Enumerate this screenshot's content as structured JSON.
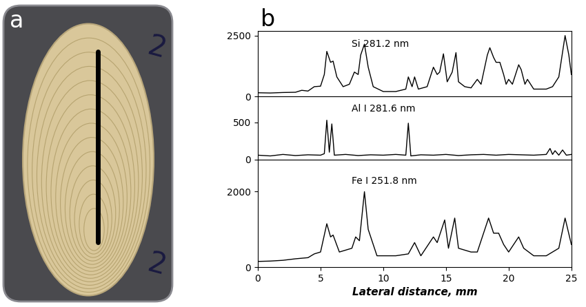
{
  "panels": [
    {
      "label": "a",
      "marks": [
        "2",
        "2"
      ]
    },
    {
      "label": "b"
    }
  ],
  "chart_data": [
    {
      "type": "line",
      "x": [
        0,
        1,
        2,
        3,
        3.5,
        4,
        4.5,
        5,
        5.3,
        5.5,
        5.8,
        6,
        6.3,
        6.8,
        7.3,
        7.7,
        8,
        8.2,
        8.5,
        8.8,
        9.2,
        10,
        11,
        11.8,
        12,
        12.3,
        12.5,
        12.8,
        13.5,
        14,
        14.3,
        14.5,
        14.8,
        15.1,
        15.5,
        15.8,
        16,
        16.5,
        17,
        17.5,
        17.8,
        18.3,
        18.5,
        18.8,
        19,
        19.3,
        19.6,
        19.8,
        20,
        20.3,
        20.8,
        21,
        21.3,
        21.5,
        22,
        22.5,
        23,
        23.5,
        24,
        24.5,
        24.8,
        25
      ],
      "series": [
        {
          "name": "Si 281.2 nm",
          "color": "#000000",
          "values": [
            150,
            140,
            160,
            170,
            250,
            220,
            400,
            420,
            900,
            1850,
            1400,
            1450,
            800,
            400,
            500,
            1000,
            900,
            1700,
            2150,
            1200,
            400,
            200,
            200,
            300,
            800,
            400,
            800,
            300,
            400,
            1200,
            900,
            1000,
            1750,
            600,
            1000,
            1800,
            600,
            400,
            350,
            700,
            500,
            1700,
            2000,
            1600,
            1400,
            1400,
            900,
            500,
            700,
            500,
            1300,
            1100,
            500,
            700,
            300,
            300,
            300,
            400,
            800,
            2500,
            1700,
            900
          ]
        }
      ],
      "xlim": [
        0,
        25
      ],
      "ylim": [
        0,
        2700
      ],
      "yticks": [
        0,
        2500
      ],
      "tick_labels": "y"
    },
    {
      "type": "line",
      "x": [
        0,
        1,
        2,
        3,
        4,
        5,
        5.3,
        5.5,
        5.7,
        5.9,
        6.1,
        7,
        8,
        9,
        10,
        11,
        11.8,
        12.0,
        12.2,
        13,
        14,
        15,
        16,
        17,
        18,
        19,
        20,
        21,
        22,
        23,
        23.3,
        23.5,
        23.7,
        24,
        24.3,
        24.6,
        25
      ],
      "series": [
        {
          "name": "Al I 281.6 nm",
          "color": "#000000",
          "values": [
            60,
            50,
            70,
            55,
            65,
            60,
            80,
            530,
            100,
            480,
            60,
            70,
            55,
            65,
            60,
            70,
            60,
            490,
            50,
            65,
            60,
            70,
            55,
            65,
            70,
            60,
            70,
            65,
            60,
            70,
            150,
            70,
            120,
            60,
            130,
            60,
            70
          ]
        }
      ],
      "xlim": [
        0,
        25
      ],
      "ylim": [
        0,
        850
      ],
      "yticks": [
        0,
        500
      ],
      "tick_labels": "y"
    },
    {
      "type": "line",
      "x": [
        0,
        1,
        2,
        3,
        4,
        4.5,
        5,
        5.5,
        5.8,
        6,
        6.5,
        7.5,
        7.8,
        8.1,
        8.5,
        8.8,
        9.5,
        11,
        12,
        12.5,
        13,
        14,
        14.3,
        14.9,
        15.2,
        15.7,
        16,
        17,
        17.5,
        18.4,
        18.8,
        19.2,
        19.6,
        20,
        20.8,
        21.2,
        22,
        23,
        24,
        24.5,
        25
      ],
      "series": [
        {
          "name": "Fe I 251.8 nm",
          "color": "#000000",
          "values": [
            150,
            160,
            180,
            220,
            250,
            350,
            400,
            1150,
            800,
            850,
            400,
            500,
            800,
            700,
            2000,
            1000,
            300,
            300,
            350,
            650,
            300,
            800,
            650,
            1250,
            500,
            1300,
            500,
            400,
            400,
            1300,
            900,
            900,
            600,
            400,
            800,
            500,
            300,
            300,
            500,
            1300,
            600
          ]
        }
      ],
      "xlim": [
        0,
        25
      ],
      "xticks": [
        0,
        5,
        10,
        15,
        20,
        25
      ],
      "ylim": [
        0,
        2850
      ],
      "yticks": [
        0,
        2000
      ],
      "xlabel": "Lateral distance, mm"
    }
  ]
}
